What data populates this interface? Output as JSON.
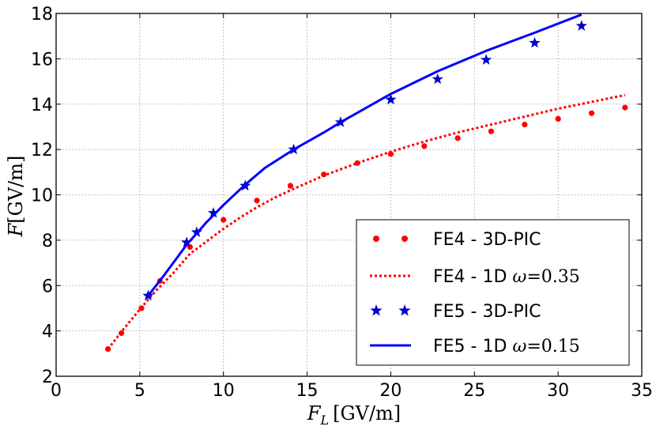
{
  "chart_data": {
    "type": "line",
    "title": "",
    "xlabel_var": "F",
    "xlabel_sub": "L",
    "xlabel_unit": "[GV/m]",
    "ylabel_var": "F",
    "ylabel_unit": "[GV/m]",
    "xlim": [
      0,
      35
    ],
    "ylim": [
      2,
      18
    ],
    "xticks": [
      0,
      5,
      10,
      15,
      20,
      25,
      30,
      35
    ],
    "yticks": [
      2,
      4,
      6,
      8,
      10,
      12,
      14,
      16,
      18
    ],
    "grid": true,
    "legend_position": "bottom-right",
    "series": [
      {
        "name": "FE4 - 3D-PIC",
        "label_prefix": "FE4 - 3D-PIC",
        "style": "dots",
        "color": "#ff0000",
        "x": [
          3.1,
          3.9,
          5.1,
          6.2,
          8.0,
          10.0,
          12.0,
          14.0,
          16.0,
          18.0,
          20.0,
          22.0,
          24.0,
          26.0,
          28.0,
          30.0,
          32.0,
          34.0
        ],
        "y": [
          3.2,
          3.9,
          5.0,
          6.2,
          7.7,
          8.9,
          9.75,
          10.4,
          10.9,
          11.4,
          11.8,
          12.15,
          12.5,
          12.8,
          13.1,
          13.35,
          13.6,
          13.85
        ]
      },
      {
        "name": "FE4 - 1D ω=0.35",
        "label_prefix": "FE4 - 1D",
        "label_omega": "ω",
        "label_eq": "=0.35",
        "style": "dotted",
        "color": "#ff0000",
        "x": [
          3.1,
          4,
          5,
          6,
          7,
          8,
          9,
          10,
          11,
          12,
          13,
          14,
          16,
          18,
          20,
          22,
          24,
          26,
          28,
          30,
          32,
          34
        ],
        "y": [
          3.2,
          4.05,
          4.95,
          5.8,
          6.55,
          7.4,
          7.95,
          8.5,
          9.0,
          9.45,
          9.85,
          10.2,
          10.85,
          11.4,
          11.9,
          12.35,
          12.75,
          13.1,
          13.45,
          13.8,
          14.1,
          14.4
        ]
      },
      {
        "name": "FE5 - 3D-PIC",
        "label_prefix": "FE5 - 3D-PIC",
        "style": "stars",
        "color": "#0000cc",
        "x": [
          5.5,
          7.8,
          8.4,
          9.4,
          11.3,
          14.2,
          17.0,
          20.0,
          22.8,
          25.7,
          28.6,
          31.4
        ],
        "y": [
          5.55,
          7.9,
          8.35,
          9.2,
          10.4,
          12.0,
          13.2,
          14.2,
          15.1,
          15.95,
          16.7,
          17.45
        ]
      },
      {
        "name": "FE5 - 1D ω=0.15",
        "label_prefix": "FE5 - 1D",
        "label_omega": "ω",
        "label_eq": "=0.15",
        "style": "solid",
        "color": "#0000ff",
        "x": [
          5.5,
          6.5,
          7.8,
          9.0,
          10.0,
          11.3,
          12.5,
          14.2,
          16.0,
          17.0,
          20.0,
          22.8,
          25.7,
          28.6,
          31.4
        ],
        "y": [
          5.55,
          6.5,
          7.8,
          8.8,
          9.55,
          10.45,
          11.2,
          12.0,
          12.75,
          13.2,
          14.45,
          15.45,
          16.35,
          17.15,
          17.95
        ]
      }
    ]
  }
}
